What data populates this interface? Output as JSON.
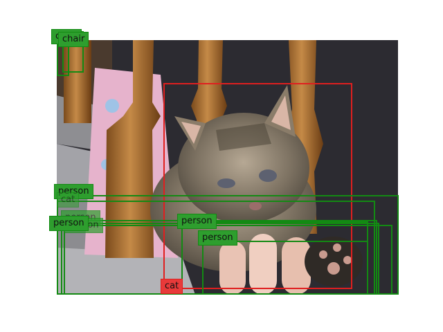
{
  "colors": {
    "person": "#138a13",
    "chair": "#138a13",
    "cat": "#e01f1f",
    "person_tag_bg": "#2e9e2e",
    "cat_tag_bg": "#e83a3a"
  },
  "detections": [
    {
      "id": "chair-a",
      "label": "chair",
      "cls": "chair"
    },
    {
      "id": "chair-b",
      "label": "chair",
      "cls": "chair"
    },
    {
      "id": "cat-main",
      "label": "cat",
      "cls": "cat"
    },
    {
      "id": "person-1",
      "label": "person",
      "cls": "person"
    },
    {
      "id": "cat-hidden",
      "label": "cat",
      "cls": "person"
    },
    {
      "id": "person-2",
      "label": "person",
      "cls": "person"
    },
    {
      "id": "person-3",
      "label": "person",
      "cls": "person"
    },
    {
      "id": "person-4",
      "label": "person",
      "cls": "person"
    },
    {
      "id": "person-5",
      "label": "person",
      "cls": "person"
    },
    {
      "id": "person-6",
      "label": "person",
      "cls": "person"
    }
  ]
}
